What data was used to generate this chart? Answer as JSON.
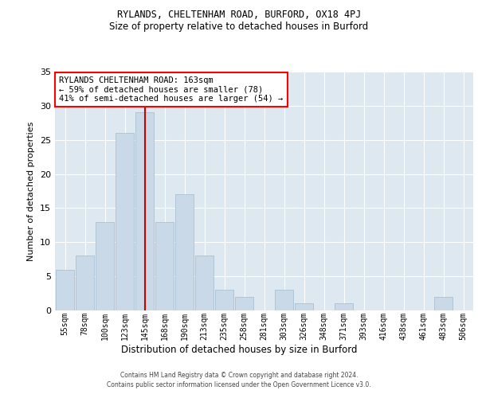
{
  "title1": "RYLANDS, CHELTENHAM ROAD, BURFORD, OX18 4PJ",
  "title2": "Size of property relative to detached houses in Burford",
  "xlabel": "Distribution of detached houses by size in Burford",
  "ylabel": "Number of detached properties",
  "bar_labels": [
    "55sqm",
    "78sqm",
    "100sqm",
    "123sqm",
    "145sqm",
    "168sqm",
    "190sqm",
    "213sqm",
    "235sqm",
    "258sqm",
    "281sqm",
    "303sqm",
    "326sqm",
    "348sqm",
    "371sqm",
    "393sqm",
    "416sqm",
    "438sqm",
    "461sqm",
    "483sqm",
    "506sqm"
  ],
  "bar_values": [
    6,
    8,
    13,
    26,
    29,
    13,
    17,
    8,
    3,
    2,
    0,
    3,
    1,
    0,
    1,
    0,
    0,
    0,
    0,
    2,
    0
  ],
  "bar_color": "#c9d9e8",
  "bar_edge_color": "#aac0d2",
  "annotation_title": "RYLANDS CHELTENHAM ROAD: 163sqm",
  "annotation_line1": "← 59% of detached houses are smaller (78)",
  "annotation_line2": "41% of semi-detached houses are larger (54) →",
  "vline_color": "#cc0000",
  "vline_x_index": 4.5,
  "ylim": [
    0,
    35
  ],
  "yticks": [
    0,
    5,
    10,
    15,
    20,
    25,
    30,
    35
  ],
  "footer": "Contains HM Land Registry data © Crown copyright and database right 2024.\nContains public sector information licensed under the Open Government Licence v3.0.",
  "fig_facecolor": "#ffffff",
  "plot_facecolor": "#dde8f0",
  "figsize": [
    6.0,
    5.0
  ],
  "dpi": 100
}
